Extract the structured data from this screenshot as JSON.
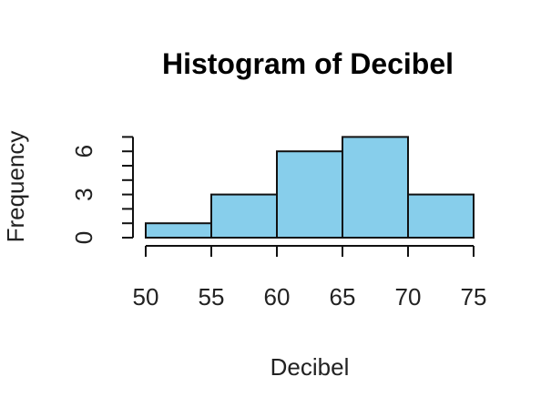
{
  "chart_data": {
    "type": "bar",
    "title": "Histogram of Decibel",
    "xlabel": "Decibel",
    "ylabel": "Frequency",
    "bins": [
      {
        "start": 50,
        "end": 55,
        "count": 1
      },
      {
        "start": 55,
        "end": 60,
        "count": 3
      },
      {
        "start": 60,
        "end": 65,
        "count": 6
      },
      {
        "start": 65,
        "end": 70,
        "count": 7
      },
      {
        "start": 70,
        "end": 75,
        "count": 3
      }
    ],
    "xlim": [
      50,
      75
    ],
    "ylim": [
      0,
      7
    ],
    "x_ticks": [
      50,
      55,
      60,
      65,
      70,
      75
    ],
    "y_ticks": [
      0,
      3,
      6
    ],
    "grid": false,
    "legend": "none",
    "bar_color": "#87ceeb",
    "bar_border_color": "#111111"
  }
}
